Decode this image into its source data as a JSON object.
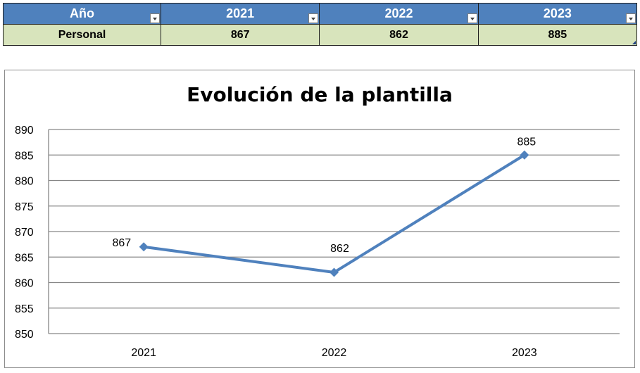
{
  "table": {
    "header": {
      "label": "Año",
      "years": [
        "2021",
        "2022",
        "2023"
      ]
    },
    "row": {
      "label": "Personal",
      "values": [
        "867",
        "862",
        "885"
      ]
    }
  },
  "chart_data": {
    "type": "line",
    "title": "Evolución de la plantilla",
    "categories": [
      "2021",
      "2022",
      "2023"
    ],
    "series": [
      {
        "values": [
          867,
          862,
          885
        ],
        "color": "#4f81bd"
      }
    ],
    "data_labels": [
      "867",
      "862",
      "885"
    ],
    "ylim": [
      850,
      890
    ],
    "yticks": [
      "850",
      "855",
      "860",
      "865",
      "870",
      "875",
      "880",
      "885",
      "890"
    ],
    "grid": true,
    "legend": "none",
    "marker": "diamond"
  }
}
